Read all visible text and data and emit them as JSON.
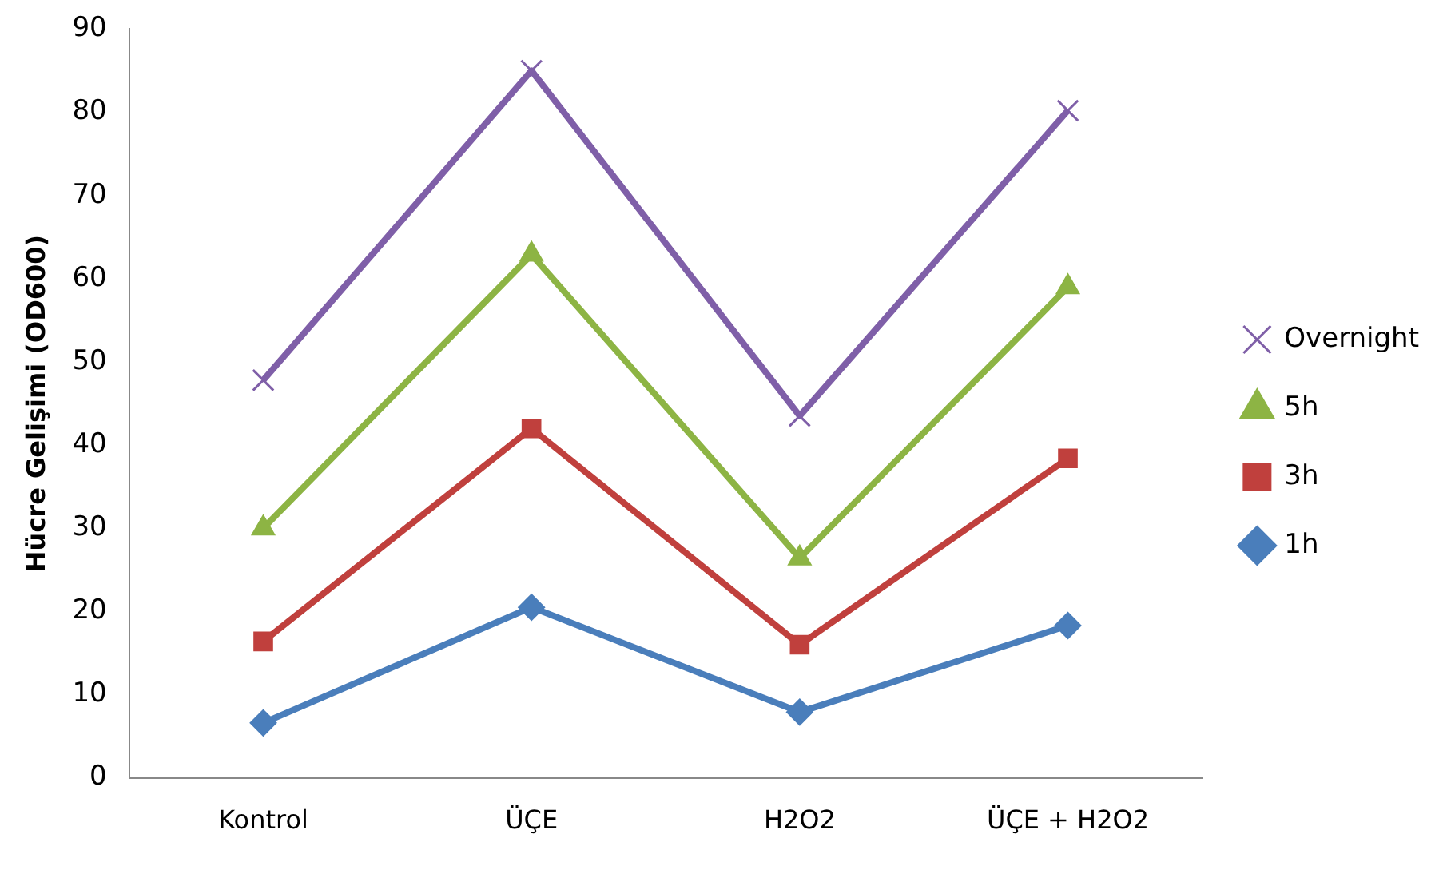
{
  "chart_data": {
    "type": "line",
    "ylabel": "Hücre Gelişimi (OD600)",
    "categories": [
      "Kontrol",
      "ÜÇE",
      "H2O2",
      "ÜÇE + H2O2"
    ],
    "series": [
      {
        "name": "Overnight",
        "color": "#7f5fa8",
        "marker": "cross",
        "values": [
          47.8,
          85,
          43.5,
          80.2
        ]
      },
      {
        "name": "5h",
        "color": "#8db444",
        "marker": "triangle",
        "values": [
          30,
          62.9,
          26.4,
          59
        ]
      },
      {
        "name": "3h",
        "color": "#c0403d",
        "marker": "square",
        "values": [
          16.4,
          42,
          16,
          38.4
        ]
      },
      {
        "name": "1h",
        "color": "#4a7ebb",
        "marker": "diamond",
        "values": [
          6.6,
          20.5,
          7.9,
          18.3
        ]
      }
    ],
    "ylim": [
      0,
      90
    ],
    "yticks": [
      0,
      10,
      20,
      30,
      40,
      50,
      60,
      70,
      80,
      90
    ],
    "grid": false,
    "legend": "right"
  }
}
